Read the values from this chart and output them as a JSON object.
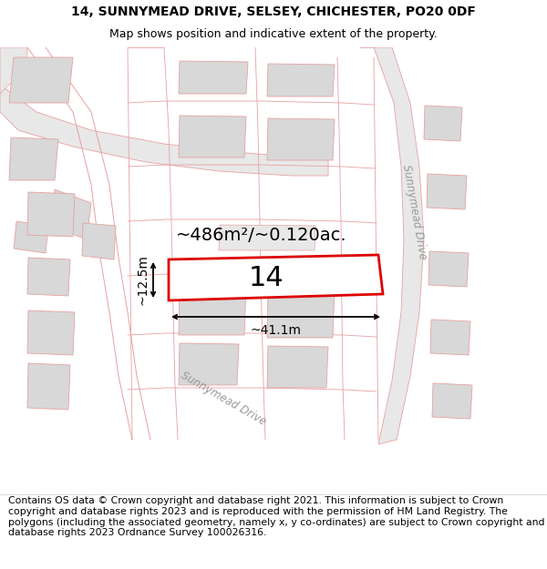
{
  "title_line1": "14, SUNNYMEAD DRIVE, SELSEY, CHICHESTER, PO20 0DF",
  "title_line2": "Map shows position and indicative extent of the property.",
  "footer_text": "Contains OS data © Crown copyright and database right 2021. This information is subject to Crown copyright and database rights 2023 and is reproduced with the permission of HM Land Registry. The polygons (including the associated geometry, namely x, y co-ordinates) are subject to Crown copyright and database rights 2023 Ordnance Survey 100026316.",
  "area_label": "~486m²/~0.120ac.",
  "number_label": "14",
  "width_label": "~41.1m",
  "height_label": "~12.5m",
  "road_label_ne": "Sunnymead Drive",
  "road_label_sw": "Sunnymead Drive",
  "map_bg": "#f0eeee",
  "road_fill": "#e8e8e8",
  "parcel_line": "#e8a0a0",
  "block_fill": "#d8d8d8",
  "plot_fill": "#ffffff",
  "plot_edge": "#dd0000",
  "title_fontsize": 10,
  "subtitle_fontsize": 9,
  "footer_fontsize": 7.8,
  "area_fontsize": 14,
  "number_fontsize": 22,
  "dim_fontsize": 10,
  "road_fontsize": 8.5
}
